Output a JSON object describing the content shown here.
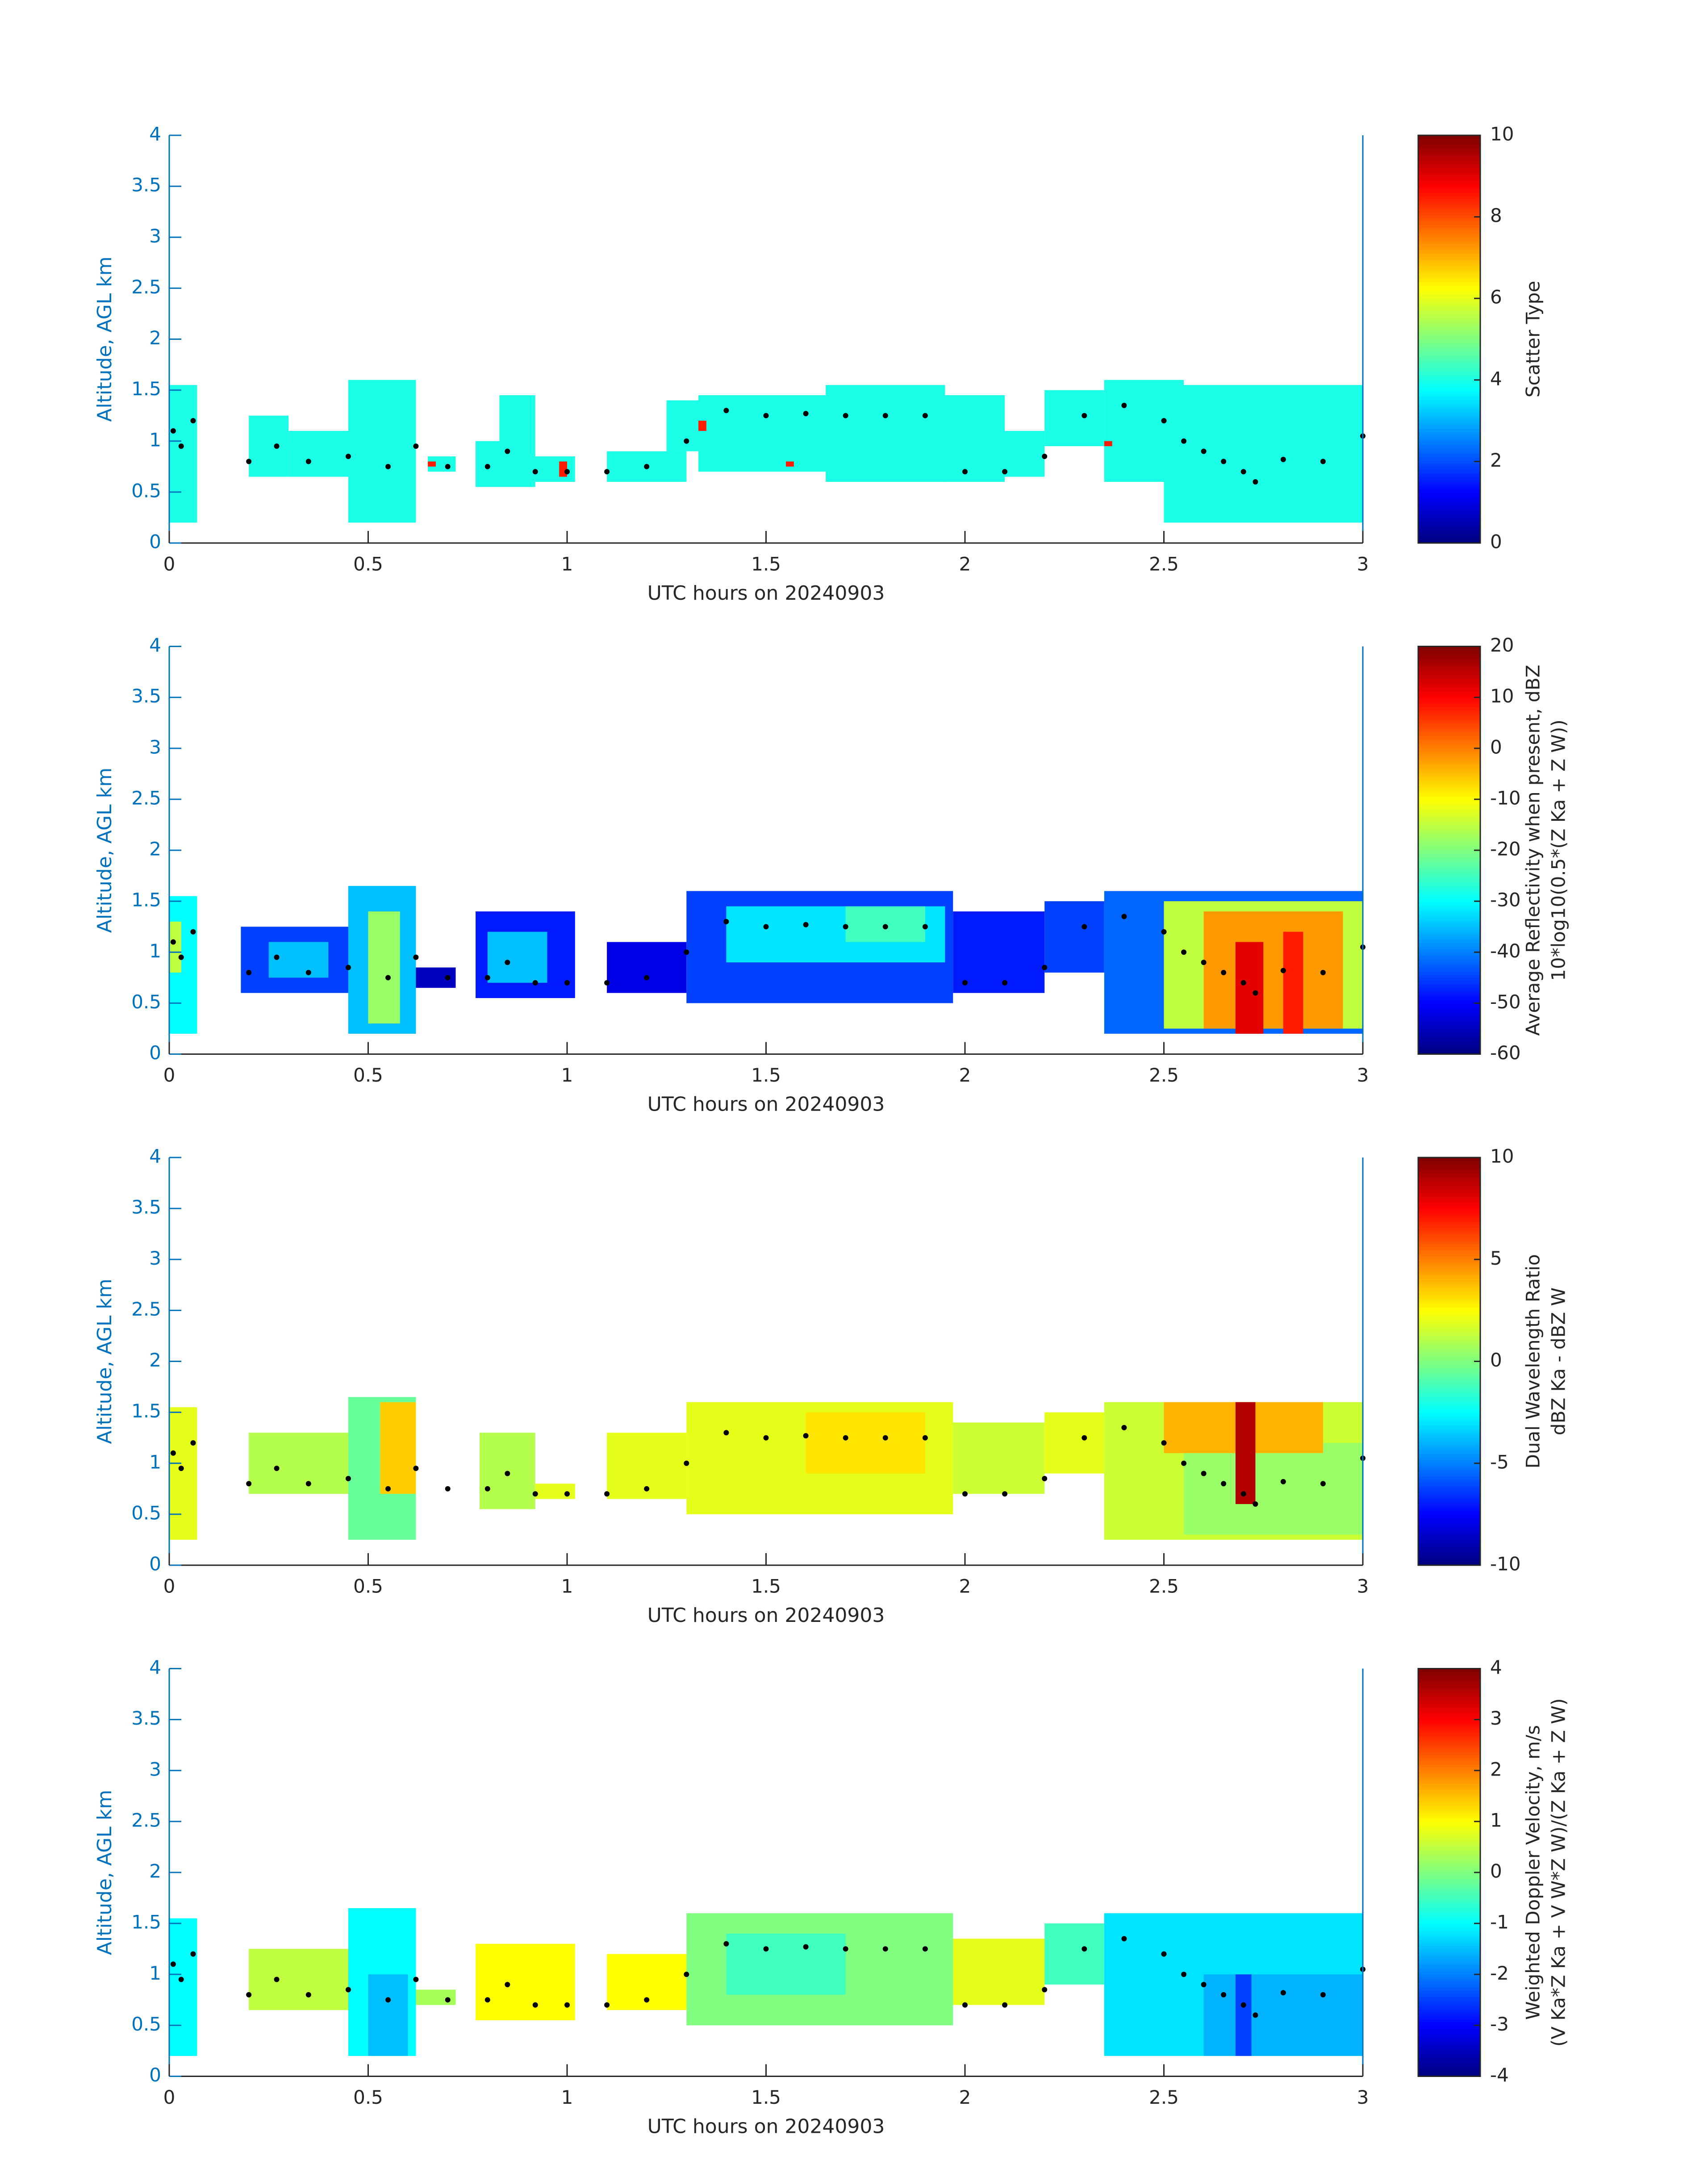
{
  "chart_data": [
    {
      "type": "heatmap",
      "xlabel": "UTC hours on 20240903",
      "ylabel": "Altitude, AGL km",
      "clabel": [
        "Scatter Type"
      ],
      "xlim": [
        0,
        3
      ],
      "xticks": [
        0,
        0.5,
        1,
        1.5,
        2,
        2.5,
        3
      ],
      "ylim": [
        0,
        4
      ],
      "yticks": [
        0,
        0.5,
        1,
        1.5,
        2,
        2.5,
        3,
        3.5,
        4
      ],
      "clim": [
        0,
        10
      ],
      "cticks": [
        0,
        2,
        4,
        6,
        8,
        10
      ],
      "blocks": {
        "x0": [
          0,
          0.2,
          0.3,
          0.45,
          0.65,
          0.77,
          0.83,
          0.92,
          1.1,
          1.25,
          1.33,
          1.65,
          1.95,
          2.1,
          2.2,
          2.35,
          2.5,
          0.65,
          0.98,
          1.33,
          1.55,
          2.35
        ],
        "x1": [
          0.07,
          0.3,
          0.45,
          0.62,
          0.72,
          0.83,
          0.92,
          1.02,
          1.3,
          1.33,
          1.65,
          1.95,
          2.1,
          2.2,
          2.35,
          2.55,
          3,
          0.67,
          1,
          1.35,
          1.57,
          2.37
        ],
        "y0": [
          0.2,
          0.65,
          0.65,
          0.2,
          0.7,
          0.55,
          0.55,
          0.6,
          0.6,
          0.9,
          0.7,
          0.6,
          0.6,
          0.65,
          0.95,
          0.6,
          0.2,
          0.75,
          0.65,
          1.1,
          0.75,
          0.95
        ],
        "y1": [
          1.55,
          1.25,
          1.1,
          1.6,
          0.85,
          1,
          1.45,
          0.85,
          0.9,
          1.4,
          1.45,
          1.55,
          1.45,
          1.1,
          1.5,
          1.6,
          1.55,
          0.8,
          0.8,
          1.2,
          0.8,
          1
        ],
        "values": [
          4,
          4,
          4,
          4,
          4,
          4,
          4,
          4,
          4,
          4,
          4,
          4,
          4,
          4,
          4,
          4,
          4,
          8.5,
          8.5,
          8.5,
          8.5,
          8.5
        ]
      },
      "points": {
        "x": [
          0.01,
          0.03,
          0.06,
          0.2,
          0.27,
          0.35,
          0.45,
          0.55,
          0.62,
          0.7,
          0.8,
          0.85,
          0.92,
          1.0,
          1.1,
          1.2,
          1.3,
          1.4,
          1.5,
          1.6,
          1.7,
          1.8,
          1.9,
          2.0,
          2.1,
          2.2,
          2.3,
          2.4,
          2.5,
          2.55,
          2.6,
          2.65,
          2.7,
          2.73,
          2.8,
          2.9,
          3.0
        ],
        "y": [
          1.1,
          0.95,
          1.2,
          0.8,
          0.95,
          0.8,
          0.85,
          0.75,
          0.95,
          0.75,
          0.75,
          0.9,
          0.7,
          0.7,
          0.7,
          0.75,
          1.0,
          1.3,
          1.25,
          1.27,
          1.25,
          1.25,
          1.25,
          0.7,
          0.7,
          0.85,
          1.25,
          1.35,
          1.2,
          1.0,
          0.9,
          0.8,
          0.7,
          0.6,
          0.82,
          0.8,
          1.05
        ]
      }
    },
    {
      "type": "heatmap",
      "xlabel": "UTC hours on 20240903",
      "ylabel": "Altitude, AGL km",
      "clabel": [
        "Average Reflectivity when present, dBZ",
        "10*log10(0.5*(Z Ka + Z W))"
      ],
      "xlim": [
        0,
        3
      ],
      "xticks": [
        0,
        0.5,
        1,
        1.5,
        2,
        2.5,
        3
      ],
      "ylim": [
        0,
        4
      ],
      "yticks": [
        0,
        0.5,
        1,
        1.5,
        2,
        2.5,
        3,
        3.5,
        4
      ],
      "clim": [
        -60,
        20
      ],
      "cticks": [
        -60,
        -50,
        -40,
        -30,
        -20,
        -10,
        0,
        10,
        20
      ],
      "blocks": {
        "x0": [
          0,
          0,
          0.18,
          0.25,
          0.45,
          0.5,
          0.62,
          0.77,
          0.8,
          1.1,
          1.3,
          1.4,
          1.7,
          1.97,
          2.2,
          2.35,
          2.5,
          2.6,
          2.68,
          2.8
        ],
        "x1": [
          0.07,
          0.03,
          0.45,
          0.4,
          0.62,
          0.58,
          0.72,
          1.02,
          0.95,
          1.3,
          1.97,
          1.95,
          1.9,
          2.2,
          2.35,
          3,
          3,
          2.95,
          2.75,
          2.85
        ],
        "y0": [
          0.2,
          0.8,
          0.6,
          0.75,
          0.2,
          0.3,
          0.65,
          0.55,
          0.7,
          0.6,
          0.5,
          0.9,
          1.1,
          0.6,
          0.8,
          0.2,
          0.25,
          0.25,
          0.2,
          0.2
        ],
        "y1": [
          1.55,
          1.3,
          1.25,
          1.1,
          1.65,
          1.4,
          0.85,
          1.4,
          1.2,
          1.1,
          1.6,
          1.45,
          1.45,
          1.4,
          1.5,
          1.6,
          1.5,
          1.4,
          1.1,
          1.2
        ],
        "values": [
          -30,
          -15,
          -45,
          -35,
          -35,
          -18,
          -55,
          -48,
          -35,
          -52,
          -45,
          -32,
          -25,
          -48,
          -45,
          -42,
          -15,
          -2,
          12,
          8
        ]
      },
      "points": {
        "x": [
          0.01,
          0.03,
          0.06,
          0.2,
          0.27,
          0.35,
          0.45,
          0.55,
          0.62,
          0.7,
          0.8,
          0.85,
          0.92,
          1.0,
          1.1,
          1.2,
          1.3,
          1.4,
          1.5,
          1.6,
          1.7,
          1.8,
          1.9,
          2.0,
          2.1,
          2.2,
          2.3,
          2.4,
          2.5,
          2.55,
          2.6,
          2.65,
          2.7,
          2.73,
          2.8,
          2.9,
          3.0
        ],
        "y": [
          1.1,
          0.95,
          1.2,
          0.8,
          0.95,
          0.8,
          0.85,
          0.75,
          0.95,
          0.75,
          0.75,
          0.9,
          0.7,
          0.7,
          0.7,
          0.75,
          1.0,
          1.3,
          1.25,
          1.27,
          1.25,
          1.25,
          1.25,
          0.7,
          0.7,
          0.85,
          1.25,
          1.35,
          1.2,
          1.0,
          0.9,
          0.8,
          0.7,
          0.6,
          0.82,
          0.8,
          1.05
        ]
      }
    },
    {
      "type": "heatmap",
      "xlabel": "UTC hours on 20240903",
      "ylabel": "Altitude, AGL km",
      "clabel": [
        "Dual Wavelength Ratio",
        "dBZ Ka - dBZ W"
      ],
      "xlim": [
        0,
        3
      ],
      "xticks": [
        0,
        0.5,
        1,
        1.5,
        2,
        2.5,
        3
      ],
      "ylim": [
        0,
        4
      ],
      "yticks": [
        0,
        0.5,
        1,
        1.5,
        2,
        2.5,
        3,
        3.5,
        4
      ],
      "clim": [
        -10,
        10
      ],
      "cticks": [
        -10,
        -5,
        0,
        5,
        10
      ],
      "blocks": {
        "x0": [
          0,
          0.2,
          0.45,
          0.53,
          0.78,
          0.92,
          1.1,
          1.3,
          1.6,
          1.97,
          2.2,
          2.35,
          2.55,
          2.5,
          2.68
        ],
        "x1": [
          0.07,
          0.45,
          0.62,
          0.62,
          0.92,
          1.02,
          1.3,
          1.97,
          1.9,
          2.2,
          2.35,
          3,
          3,
          2.9,
          2.73
        ],
        "y0": [
          0.25,
          0.7,
          0.25,
          0.7,
          0.55,
          0.65,
          0.65,
          0.5,
          0.9,
          0.7,
          0.9,
          0.25,
          0.3,
          1.1,
          0.6
        ],
        "y1": [
          1.55,
          1.3,
          1.65,
          1.6,
          1.3,
          0.8,
          1.3,
          1.6,
          1.5,
          1.4,
          1.5,
          1.6,
          1.2,
          1.6,
          1.6
        ],
        "values": [
          2,
          1,
          -0.5,
          3.5,
          1,
          2,
          2,
          2,
          3,
          1.5,
          2,
          1.5,
          0.5,
          4,
          9
        ]
      },
      "points": {
        "x": [
          0.01,
          0.03,
          0.06,
          0.2,
          0.27,
          0.35,
          0.45,
          0.55,
          0.62,
          0.7,
          0.8,
          0.85,
          0.92,
          1.0,
          1.1,
          1.2,
          1.3,
          1.4,
          1.5,
          1.6,
          1.7,
          1.8,
          1.9,
          2.0,
          2.1,
          2.2,
          2.3,
          2.4,
          2.5,
          2.55,
          2.6,
          2.65,
          2.7,
          2.73,
          2.8,
          2.9,
          3.0
        ],
        "y": [
          1.1,
          0.95,
          1.2,
          0.8,
          0.95,
          0.8,
          0.85,
          0.75,
          0.95,
          0.75,
          0.75,
          0.9,
          0.7,
          0.7,
          0.7,
          0.75,
          1.0,
          1.3,
          1.25,
          1.27,
          1.25,
          1.25,
          1.25,
          0.7,
          0.7,
          0.85,
          1.25,
          1.35,
          1.2,
          1.0,
          0.9,
          0.8,
          0.7,
          0.6,
          0.82,
          0.8,
          1.05
        ]
      }
    },
    {
      "type": "heatmap",
      "xlabel": "UTC hours on 20240903",
      "ylabel": "Altitude, AGL km",
      "clabel": [
        "Weighted Doppler Velocity, m/s",
        "(V Ka*Z Ka + V W*Z W)/(Z Ka + Z W)"
      ],
      "xlim": [
        0,
        3
      ],
      "xticks": [
        0,
        0.5,
        1,
        1.5,
        2,
        2.5,
        3
      ],
      "ylim": [
        0,
        4
      ],
      "yticks": [
        0,
        0.5,
        1,
        1.5,
        2,
        2.5,
        3,
        3.5,
        4
      ],
      "clim": [
        -4,
        4
      ],
      "cticks": [
        -4,
        -3,
        -2,
        -1,
        0,
        1,
        2,
        3,
        4
      ],
      "blocks": {
        "x0": [
          0,
          0.2,
          0.45,
          0.5,
          0.62,
          0.77,
          1.1,
          1.3,
          1.4,
          1.97,
          2.2,
          2.35,
          2.6,
          2.68
        ],
        "x1": [
          0.07,
          0.45,
          0.62,
          0.6,
          0.72,
          1.02,
          1.3,
          1.97,
          1.7,
          2.2,
          2.35,
          3,
          3,
          2.72
        ],
        "y0": [
          0.2,
          0.65,
          0.2,
          0.2,
          0.7,
          0.55,
          0.65,
          0.5,
          0.8,
          0.7,
          0.9,
          0.2,
          0.2,
          0.2
        ],
        "y1": [
          1.55,
          1.25,
          1.65,
          1,
          0.85,
          1.3,
          1.2,
          1.6,
          1.4,
          1.35,
          1.5,
          1.6,
          1,
          1
        ],
        "values": [
          -1,
          0.5,
          -1,
          -1.5,
          0.3,
          1,
          1,
          0,
          -0.5,
          0.8,
          -0.5,
          -1.2,
          -1.6,
          -2.5
        ]
      },
      "points": {
        "x": [
          0.01,
          0.03,
          0.06,
          0.2,
          0.27,
          0.35,
          0.45,
          0.55,
          0.62,
          0.7,
          0.8,
          0.85,
          0.92,
          1.0,
          1.1,
          1.2,
          1.3,
          1.4,
          1.5,
          1.6,
          1.7,
          1.8,
          1.9,
          2.0,
          2.1,
          2.2,
          2.3,
          2.4,
          2.5,
          2.55,
          2.6,
          2.65,
          2.7,
          2.73,
          2.8,
          2.9,
          3.0
        ],
        "y": [
          1.1,
          0.95,
          1.2,
          0.8,
          0.95,
          0.8,
          0.85,
          0.75,
          0.95,
          0.75,
          0.75,
          0.9,
          0.7,
          0.7,
          0.7,
          0.75,
          1.0,
          1.3,
          1.25,
          1.27,
          1.25,
          1.25,
          1.25,
          0.7,
          0.7,
          0.85,
          1.25,
          1.35,
          1.2,
          1.0,
          0.9,
          0.8,
          0.7,
          0.6,
          0.82,
          0.8,
          1.05
        ]
      }
    }
  ]
}
